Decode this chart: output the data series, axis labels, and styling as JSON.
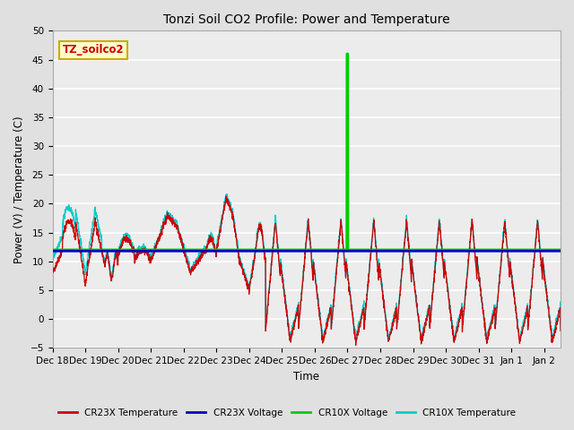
{
  "title": "Tonzi Soil CO2 Profile: Power and Temperature",
  "xlabel": "Time",
  "ylabel": "Power (V) / Temperature (C)",
  "ylim": [
    -5,
    50
  ],
  "yticks": [
    -5,
    0,
    5,
    10,
    15,
    20,
    25,
    30,
    35,
    40,
    45,
    50
  ],
  "xlim_start": 0,
  "xlim_end": 15.5,
  "xtick_labels": [
    "Dec 18",
    "Dec 19",
    "Dec 20",
    "Dec 21",
    "Dec 22",
    "Dec 23",
    "Dec 24",
    "Dec 25",
    "Dec 26",
    "Dec 27",
    "Dec 28",
    "Dec 29",
    "Dec 30",
    "Dec 31",
    "Jan 1",
    "Jan 2"
  ],
  "bg_color": "#e0e0e0",
  "plot_bg_color": "#ececec",
  "cr23x_voltage_value": 11.8,
  "cr10x_voltage_value": 12.0,
  "cr10x_voltage_spike_x": 9.0,
  "cr10x_voltage_spike_y": 46.0,
  "legend_labels": [
    "CR23X Temperature",
    "CR23X Voltage",
    "CR10X Voltage",
    "CR10X Temperature"
  ],
  "legend_colors": [
    "#cc0000",
    "#0000bb",
    "#00cc00",
    "#00cccc"
  ],
  "box_label": "TZ_soilco2",
  "box_color": "#ffffcc",
  "box_border_color": "#ccaa00"
}
